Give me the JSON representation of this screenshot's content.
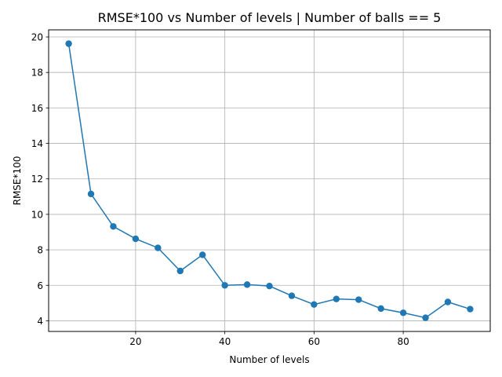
{
  "chart_data": {
    "type": "line",
    "title": "RMSE*100 vs Number of levels | Number of balls == 5",
    "xlabel": "Number of levels",
    "ylabel": "RMSE*100",
    "xlim": [
      0.5,
      99.5
    ],
    "ylim": [
      3.4,
      20.4
    ],
    "xticks": [
      20,
      40,
      60,
      80
    ],
    "yticks": [
      4,
      6,
      8,
      10,
      12,
      14,
      16,
      18,
      20
    ],
    "grid": true,
    "series": [
      {
        "color": "#1f77b4",
        "marker": "circle",
        "x": [
          5,
          10,
          15,
          20,
          25,
          30,
          35,
          40,
          45,
          50,
          55,
          60,
          65,
          70,
          75,
          80,
          85,
          90,
          95
        ],
        "y": [
          19.62,
          11.15,
          9.32,
          8.62,
          8.11,
          6.81,
          7.72,
          6.0,
          6.04,
          5.96,
          5.41,
          4.92,
          5.23,
          5.19,
          4.69,
          4.45,
          4.17,
          5.06,
          4.66
        ]
      }
    ]
  }
}
